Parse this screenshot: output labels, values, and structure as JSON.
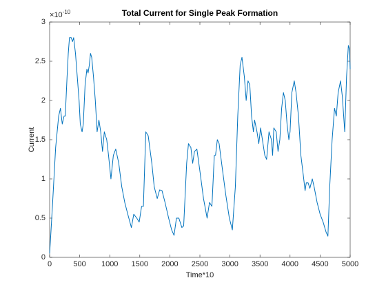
{
  "chart_data": {
    "type": "line",
    "title": "Total Current for Single Peak Formation",
    "x_label": "Time*10",
    "y_label": "Current",
    "y_multiplier": {
      "base": "×10",
      "power": "-10"
    },
    "xlim": [
      0,
      5000
    ],
    "xticks": [
      0,
      500,
      1000,
      1500,
      2000,
      2500,
      3000,
      3500,
      4000,
      4500,
      5000
    ],
    "ylim": [
      0,
      3
    ],
    "yticks": [
      0,
      0.5,
      1,
      1.5,
      2,
      2.5,
      3
    ],
    "grid": false,
    "series": [
      {
        "color": "#0072bd",
        "x": [
          0,
          20,
          50,
          100,
          150,
          180,
          210,
          240,
          260,
          290,
          310,
          330,
          360,
          380,
          400,
          430,
          460,
          490,
          510,
          540,
          560,
          590,
          620,
          640,
          660,
          680,
          700,
          730,
          760,
          790,
          820,
          850,
          880,
          910,
          950,
          980,
          1020,
          1060,
          1100,
          1150,
          1200,
          1250,
          1300,
          1360,
          1400,
          1450,
          1490,
          1530,
          1560,
          1600,
          1640,
          1700,
          1740,
          1790,
          1830,
          1870,
          1920,
          1980,
          2030,
          2070,
          2110,
          2150,
          2200,
          2230,
          2280,
          2310,
          2350,
          2380,
          2410,
          2450,
          2500,
          2560,
          2620,
          2660,
          2700,
          2740,
          2760,
          2790,
          2820,
          2870,
          2930,
          2990,
          3040,
          3090,
          3130,
          3170,
          3200,
          3240,
          3270,
          3300,
          3330,
          3360,
          3390,
          3410,
          3450,
          3480,
          3510,
          3550,
          3580,
          3610,
          3650,
          3690,
          3710,
          3730,
          3770,
          3800,
          3830,
          3860,
          3890,
          3920,
          3950,
          3980,
          4000,
          4030,
          4070,
          4100,
          4140,
          4180,
          4220,
          4250,
          4270,
          4300,
          4330,
          4370,
          4400,
          4450,
          4500,
          4550,
          4600,
          4630,
          4660,
          4700,
          4740,
          4770,
          4800,
          4840,
          4870,
          4910,
          4940,
          4970,
          4990,
          5000
        ],
        "values": [
          0.05,
          0.3,
          0.7,
          1.4,
          1.8,
          1.9,
          1.7,
          1.8,
          1.8,
          2.3,
          2.6,
          2.8,
          2.8,
          2.75,
          2.8,
          2.6,
          2.3,
          2.0,
          1.7,
          1.6,
          1.7,
          2.2,
          2.4,
          2.35,
          2.45,
          2.6,
          2.55,
          2.3,
          2.0,
          1.6,
          1.75,
          1.6,
          1.35,
          1.6,
          1.5,
          1.3,
          1.0,
          1.3,
          1.38,
          1.2,
          0.9,
          0.7,
          0.55,
          0.38,
          0.55,
          0.5,
          0.45,
          0.65,
          0.65,
          1.6,
          1.55,
          1.2,
          0.9,
          0.75,
          0.86,
          0.85,
          0.7,
          0.5,
          0.35,
          0.28,
          0.5,
          0.5,
          0.38,
          0.4,
          1.2,
          1.45,
          1.4,
          1.2,
          1.35,
          1.38,
          1.1,
          0.75,
          0.5,
          0.7,
          0.65,
          1.3,
          1.3,
          1.5,
          1.45,
          1.15,
          0.8,
          0.5,
          0.35,
          0.9,
          1.8,
          2.45,
          2.55,
          2.3,
          2.0,
          2.25,
          2.2,
          1.8,
          1.6,
          1.75,
          1.6,
          1.45,
          1.65,
          1.45,
          1.3,
          1.25,
          1.6,
          1.5,
          1.3,
          1.65,
          1.6,
          1.35,
          1.5,
          1.9,
          2.1,
          2.0,
          1.7,
          1.5,
          1.6,
          2.1,
          2.25,
          2.1,
          1.8,
          1.3,
          1.05,
          0.85,
          0.95,
          0.95,
          0.88,
          1.0,
          0.9,
          0.7,
          0.55,
          0.45,
          0.32,
          0.27,
          0.9,
          1.5,
          1.9,
          1.8,
          2.1,
          2.25,
          2.05,
          1.6,
          2.3,
          2.7,
          2.65,
          2.4
        ]
      }
    ]
  }
}
